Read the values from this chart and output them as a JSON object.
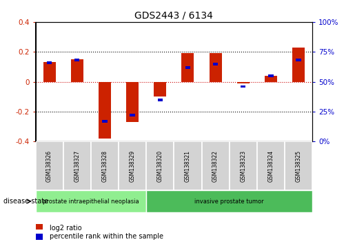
{
  "title": "GDS2443 / 6134",
  "samples": [
    "GSM138326",
    "GSM138327",
    "GSM138328",
    "GSM138329",
    "GSM138320",
    "GSM138321",
    "GSM138322",
    "GSM138323",
    "GSM138324",
    "GSM138325"
  ],
  "log2_ratio": [
    0.13,
    0.15,
    -0.38,
    -0.27,
    -0.1,
    0.19,
    0.19,
    -0.01,
    0.04,
    0.23
  ],
  "percentile_rank_raw": [
    66,
    68,
    17,
    22,
    35,
    62,
    65,
    46,
    55,
    68
  ],
  "disease_states": [
    {
      "label": "prostate intraepithelial neoplasia",
      "start": 0,
      "end": 4,
      "color": "#90EE90"
    },
    {
      "label": "invasive prostate tumor",
      "start": 4,
      "end": 10,
      "color": "#4CBB5A"
    }
  ],
  "ylim": [
    -0.4,
    0.4
  ],
  "yticks_left": [
    -0.4,
    -0.2,
    0.0,
    0.2,
    0.4
  ],
  "yticks_right": [
    0,
    25,
    50,
    75,
    100
  ],
  "bar_color_red": "#CC2200",
  "bar_color_blue": "#0000CC",
  "zero_line_color": "#CC0000",
  "dotted_line_color": "#000000",
  "background_color": "#ffffff",
  "plot_bg_color": "#ffffff",
  "bar_width": 0.45,
  "legend_red_label": "log2 ratio",
  "legend_blue_label": "percentile rank within the sample",
  "disease_state_label": "disease state",
  "blue_bar_width": 0.18,
  "blue_bar_height": 0.018,
  "sample_box_color": "#D3D3D3",
  "figsize": [
    5.15,
    3.54
  ],
  "dpi": 100
}
